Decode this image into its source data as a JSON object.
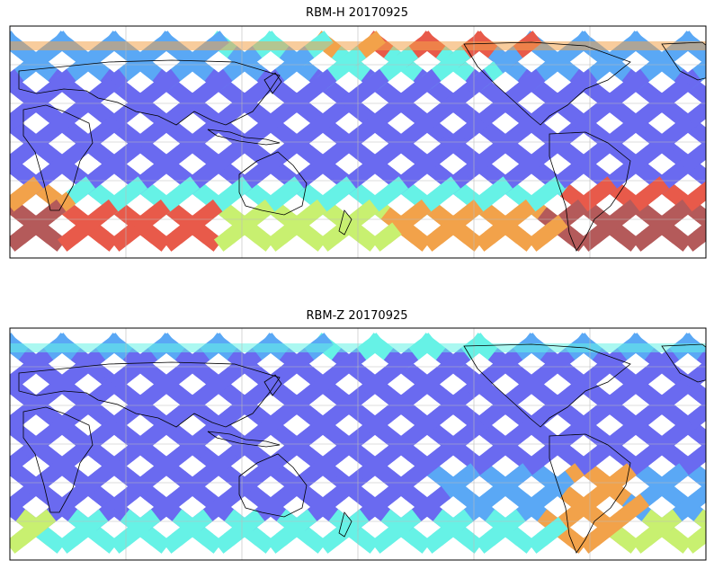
{
  "figure": {
    "panels": [
      {
        "title": "RBM-H 20170925",
        "projection": "PlateCarree",
        "central_longitude": 180,
        "lat_range": [
          -70,
          70
        ],
        "colormap": "jet",
        "swath_stripes": "Satellite ground-track swaths criss-crossing the globe; high values (orange/red) near the southern and northern edges",
        "high_value_regions": [
          "southern ocean band",
          "north Pacific edge",
          "south Atlantic"
        ]
      },
      {
        "title": "RBM-Z 20170925",
        "projection": "PlateCarree",
        "central_longitude": 180,
        "lat_range": [
          -70,
          70
        ],
        "colormap": "jet",
        "swath_stripes": "Satellite ground-track swaths criss-crossing the globe; mostly low (blue) values with moderate values in the south",
        "high_value_regions": [
          "south Atlantic",
          "southern ocean band"
        ]
      }
    ]
  },
  "colors": {
    "low": "#6a6af0",
    "mid_low": "#5aa8f5",
    "mid": "#66f2e6",
    "mid_high": "#c8f070",
    "high": "#f2a24a",
    "very_high": "#e85a4a",
    "extreme": "#b45a5a",
    "coast": "#000000",
    "grid": "#bbbbbb"
  }
}
